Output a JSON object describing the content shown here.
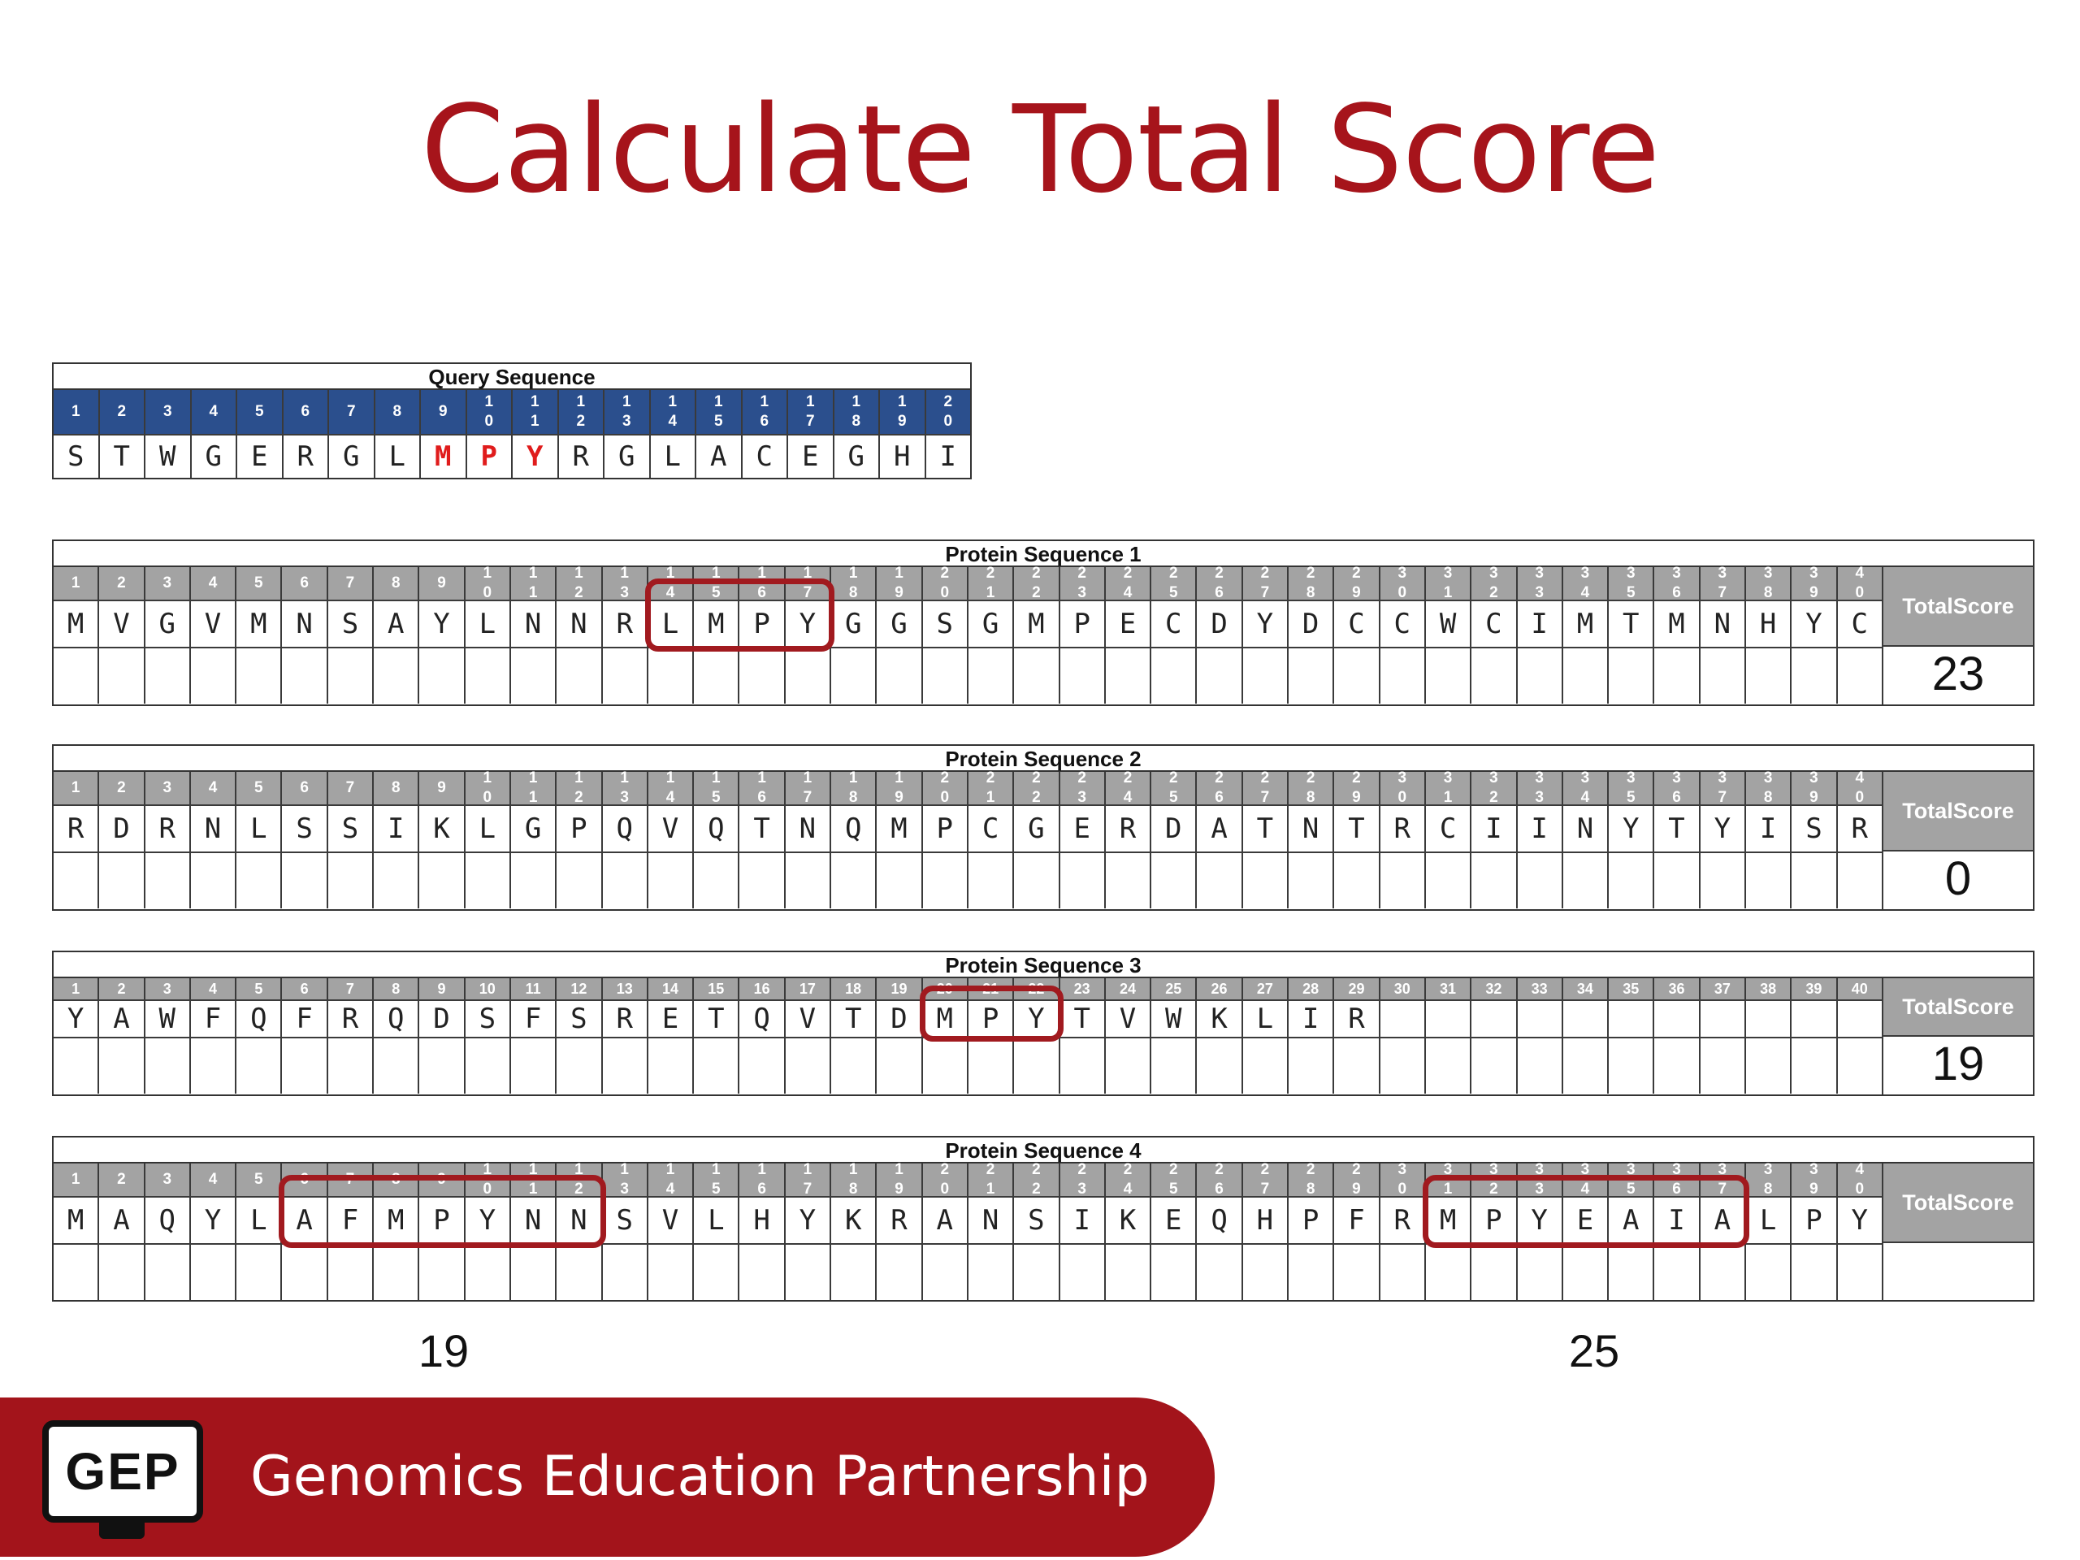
{
  "title": "Calculate Total Score",
  "score_label": "Total Score",
  "query": {
    "title": "Query Sequence",
    "numbers": [
      "1",
      "2",
      "3",
      "4",
      "5",
      "6",
      "7",
      "8",
      "9",
      "1|0",
      "1|1",
      "1|2",
      "1|3",
      "1|4",
      "1|5",
      "1|6",
      "1|7",
      "1|8",
      "1|9",
      "2|0"
    ],
    "residues": [
      "S",
      "T",
      "W",
      "G",
      "E",
      "R",
      "G",
      "L",
      "M",
      "P",
      "Y",
      "R",
      "G",
      "L",
      "A",
      "C",
      "E",
      "G",
      "H",
      "I"
    ],
    "highlighted_positions": [
      9,
      10,
      11
    ],
    "highlight_color": "#e01c1c"
  },
  "col_numbers_stacked": [
    "1",
    "2",
    "3",
    "4",
    "5",
    "6",
    "7",
    "8",
    "9",
    "1|0",
    "1|1",
    "1|2",
    "1|3",
    "1|4",
    "1|5",
    "1|6",
    "1|7",
    "1|8",
    "1|9",
    "2|0",
    "2|1",
    "2|2",
    "2|3",
    "2|4",
    "2|5",
    "2|6",
    "2|7",
    "2|8",
    "2|9",
    "3|0",
    "3|1",
    "3|2",
    "3|3",
    "3|4",
    "3|5",
    "3|6",
    "3|7",
    "3|8",
    "3|9",
    "4|0"
  ],
  "col_numbers_flat": [
    "1",
    "2",
    "3",
    "4",
    "5",
    "6",
    "7",
    "8",
    "9",
    "10",
    "11",
    "12",
    "13",
    "14",
    "15",
    "16",
    "17",
    "18",
    "19",
    "20",
    "21",
    "22",
    "23",
    "24",
    "25",
    "26",
    "27",
    "28",
    "29",
    "30",
    "31",
    "32",
    "33",
    "34",
    "35",
    "36",
    "37",
    "38",
    "39",
    "40"
  ],
  "proteins": [
    {
      "title": "Protein Sequence 1",
      "residues": [
        "M",
        "V",
        "G",
        "V",
        "M",
        "N",
        "S",
        "A",
        "Y",
        "L",
        "N",
        "N",
        "R",
        "L",
        "M",
        "P",
        "Y",
        "G",
        "G",
        "S",
        "G",
        "M",
        "P",
        "E",
        "C",
        "D",
        "Y",
        "D",
        "C",
        "C",
        "W",
        "C",
        "I",
        "M",
        "T",
        "M",
        "N",
        "H",
        "Y",
        "C"
      ],
      "total_score": "23",
      "boxes": [
        [
          14,
          17
        ]
      ]
    },
    {
      "title": "Protein Sequence 2",
      "residues": [
        "R",
        "D",
        "R",
        "N",
        "L",
        "S",
        "S",
        "I",
        "K",
        "L",
        "G",
        "P",
        "Q",
        "V",
        "Q",
        "T",
        "N",
        "Q",
        "M",
        "P",
        "C",
        "G",
        "E",
        "R",
        "D",
        "A",
        "T",
        "N",
        "T",
        "R",
        "C",
        "I",
        "I",
        "N",
        "Y",
        "T",
        "Y",
        "I",
        "S",
        "R"
      ],
      "total_score": "0",
      "boxes": []
    },
    {
      "title": "Protein Sequence 3",
      "residues": [
        "Y",
        "A",
        "W",
        "F",
        "Q",
        "F",
        "R",
        "Q",
        "D",
        "S",
        "F",
        "S",
        "R",
        "E",
        "T",
        "Q",
        "V",
        "T",
        "D",
        "M",
        "P",
        "Y",
        "T",
        "V",
        "W",
        "K",
        "L",
        "I",
        "R",
        "",
        "",
        "",
        "",
        "",
        "",
        "",
        "",
        "",
        "",
        ""
      ],
      "total_score": "19",
      "boxes": [
        [
          20,
          22
        ]
      ]
    },
    {
      "title": "Protein Sequence 4",
      "residues": [
        "M",
        "A",
        "Q",
        "Y",
        "L",
        "A",
        "F",
        "M",
        "P",
        "Y",
        "N",
        "N",
        "S",
        "V",
        "L",
        "H",
        "Y",
        "K",
        "R",
        "A",
        "N",
        "S",
        "I",
        "K",
        "E",
        "Q",
        "H",
        "P",
        "F",
        "R",
        "M",
        "P",
        "Y",
        "E",
        "A",
        "I",
        "A",
        "L",
        "P",
        "Y"
      ],
      "total_score": "",
      "boxes": [
        [
          6,
          12
        ],
        [
          31,
          37
        ]
      ],
      "box_scores": [
        "19",
        "25"
      ]
    }
  ],
  "box_color": "#a11a1f",
  "footer": {
    "logo_text": "GEP",
    "org_name": "Genomics Education Partnership",
    "color": "#a3141b"
  }
}
